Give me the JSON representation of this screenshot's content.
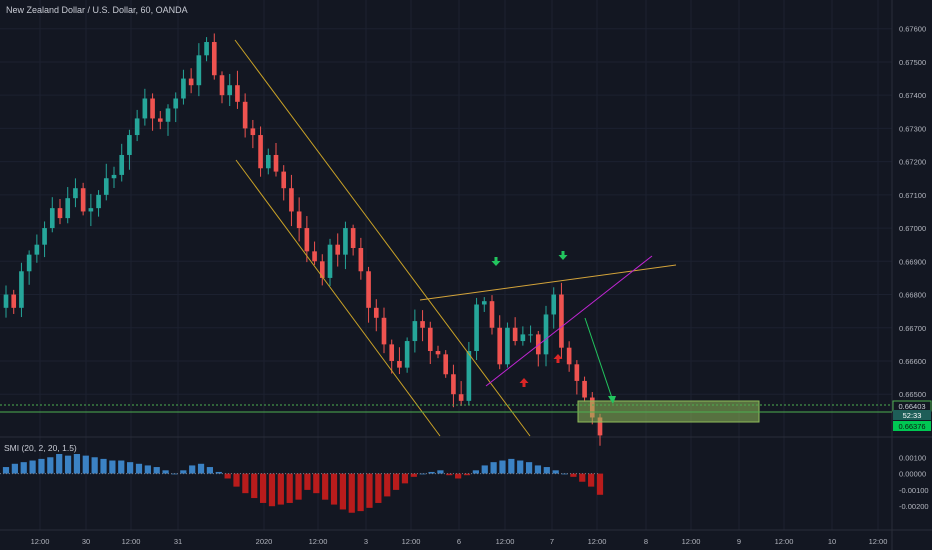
{
  "header": {
    "title": "New Zealand Dollar / U.S. Dollar, 60, OANDA"
  },
  "indicator": {
    "label": "SMI (20, 2, 20, 1.5)"
  },
  "colors": {
    "background": "#131722",
    "up": "#26a69a",
    "down": "#ef5350",
    "channel": "#c9a227",
    "wedge_top": "#d4a43a",
    "wedge_bottom": "#c026d3",
    "arrow_down": "#22c55e",
    "arrow_up": "#dc2626",
    "hist_pos": "#3b82c4",
    "hist_neg": "#b91c1c",
    "level": "#4caf50",
    "target_zone": "#8fbc5a"
  },
  "chart_data": [
    {
      "type": "candlestick",
      "symbol": "NZDUSD",
      "timeframe": "60",
      "ylim": [
        0.6637,
        0.6761
      ],
      "y_ticks": [
        "0.67600",
        "0.67500",
        "0.67400",
        "0.67300",
        "0.67200",
        "0.67100",
        "0.67000",
        "0.66900",
        "0.66800",
        "0.66700",
        "0.66600",
        "0.66500"
      ],
      "x_tick_labels": [
        "12:00",
        "30",
        "12:00",
        "31",
        "2020",
        "12:00",
        "3",
        "12:00",
        "6",
        "12:00",
        "7",
        "12:00",
        "8",
        "12:00",
        "9",
        "12:00",
        "10",
        "12:00"
      ],
      "price_labels": [
        {
          "text": "0.66403",
          "kind": "level"
        },
        {
          "text": "52:33",
          "kind": "countdown"
        },
        {
          "text": "0.66376",
          "kind": "last"
        }
      ],
      "close_series": [
        0.668,
        0.6676,
        0.6687,
        0.6692,
        0.6695,
        0.67,
        0.6706,
        0.6703,
        0.6709,
        0.6712,
        0.6705,
        0.6706,
        0.671,
        0.6715,
        0.6716,
        0.6722,
        0.6728,
        0.6733,
        0.6739,
        0.6733,
        0.6732,
        0.6736,
        0.6739,
        0.6745,
        0.6743,
        0.6752,
        0.6756,
        0.6746,
        0.674,
        0.6743,
        0.6738,
        0.673,
        0.6728,
        0.6718,
        0.6722,
        0.6717,
        0.6712,
        0.6705,
        0.67,
        0.6693,
        0.669,
        0.6685,
        0.6695,
        0.6692,
        0.67,
        0.6694,
        0.6687,
        0.6676,
        0.6673,
        0.6665,
        0.666,
        0.6658,
        0.6666,
        0.6672,
        0.667,
        0.6663,
        0.6662,
        0.6656,
        0.665,
        0.6648,
        0.6663,
        0.6677,
        0.6678,
        0.667,
        0.6659,
        0.667,
        0.6666,
        0.6668,
        0.6668,
        0.6662,
        0.6674,
        0.668,
        0.6664,
        0.6659,
        0.6654,
        0.6649,
        0.6643,
        0.66376
      ],
      "annotations": [
        {
          "kind": "descending-channel"
        },
        {
          "kind": "rising-wedge"
        },
        {
          "kind": "down-arrow"
        },
        {
          "kind": "down-arrow"
        },
        {
          "kind": "up-arrow"
        },
        {
          "kind": "up-arrow"
        },
        {
          "kind": "target-zone"
        },
        {
          "kind": "projection-arrow"
        }
      ]
    },
    {
      "type": "bar",
      "name": "SMI (20, 2, 20, 1.5)",
      "ylim": [
        -0.0026,
        0.0012
      ],
      "y_ticks": [
        "0.00100",
        "0.00000",
        "-0.00100",
        "-0.00200"
      ],
      "values": [
        0.0004,
        0.0006,
        0.0007,
        0.0008,
        0.0009,
        0.001,
        0.0012,
        0.0011,
        0.0012,
        0.0011,
        0.001,
        0.0009,
        0.0008,
        0.0008,
        0.0007,
        0.0006,
        0.0005,
        0.0004,
        0.0002,
        0.0,
        0.0002,
        0.0005,
        0.0006,
        0.0004,
        0.0001,
        -0.0003,
        -0.0008,
        -0.0012,
        -0.0015,
        -0.0018,
        -0.002,
        -0.0019,
        -0.0018,
        -0.0016,
        -0.001,
        -0.0012,
        -0.0016,
        -0.0019,
        -0.0022,
        -0.0024,
        -0.0023,
        -0.0021,
        -0.0018,
        -0.0014,
        -0.001,
        -0.0006,
        -0.0002,
        0.0,
        0.0001,
        0.0002,
        -0.0001,
        -0.0003,
        -0.0001,
        0.0002,
        0.0005,
        0.0007,
        0.0008,
        0.0009,
        0.0008,
        0.0007,
        0.0005,
        0.0004,
        0.0002,
        0.0,
        -0.0002,
        -0.0005,
        -0.0008,
        -0.0013
      ]
    }
  ]
}
